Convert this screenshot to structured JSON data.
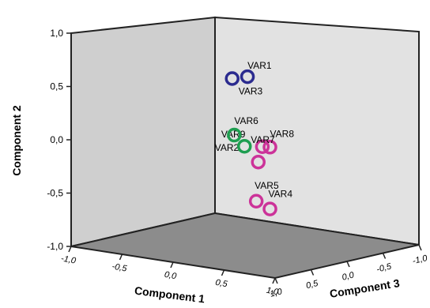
{
  "chart_data": {
    "type": "scatter",
    "projection": "3d",
    "xlabel": "Component 1",
    "ylabel": "Component 2",
    "zlabel": "Component 3",
    "xlim": [
      -1.0,
      1.0
    ],
    "ylim": [
      -1.0,
      1.0
    ],
    "zlim": [
      -1.0,
      1.0
    ],
    "x_ticks": [
      "-1,0",
      "-0,5",
      "0,0",
      "0,5",
      "1,0"
    ],
    "y_ticks": [
      "1,0",
      "0,5",
      "0,0",
      "-0,5",
      "-1,0"
    ],
    "z_ticks": [
      "1,0",
      "0,5",
      "0,0",
      "-0,5",
      "-1,0"
    ],
    "grid": false,
    "colors": {
      "group_blue": "#2b2b8f",
      "group_magenta": "#cc3399",
      "group_green": "#1e9e50"
    },
    "points": [
      {
        "label": "VAR1",
        "x": 0.68,
        "y": 0.83,
        "z": 0.93,
        "color": "#2b2b8f"
      },
      {
        "label": "VAR3",
        "x": 0.53,
        "y": 0.79,
        "z": 0.93,
        "color": "#2b2b8f"
      },
      {
        "label": "VAR9",
        "x": 0.84,
        "y": 0.2,
        "z": 0.95,
        "color": "#cc3399"
      },
      {
        "label": "VAR8",
        "x": 0.95,
        "y": 0.22,
        "z": 1.0,
        "color": "#cc3399"
      },
      {
        "label": "VAR2",
        "x": 0.8,
        "y": 0.05,
        "z": 0.95,
        "color": "#cc3399"
      },
      {
        "label": "VAR5",
        "x": 0.78,
        "y": -0.32,
        "z": 0.95,
        "color": "#cc3399"
      },
      {
        "label": "VAR4",
        "x": 0.95,
        "y": -0.36,
        "z": 1.0,
        "color": "#cc3399"
      },
      {
        "label": "VAR6",
        "x": 0.0,
        "y": 0.06,
        "z": 0.15,
        "color": "#1e9e50"
      },
      {
        "label": "VAR7",
        "x": 0.1,
        "y": -0.03,
        "z": 0.15,
        "color": "#1e9e50"
      }
    ]
  }
}
